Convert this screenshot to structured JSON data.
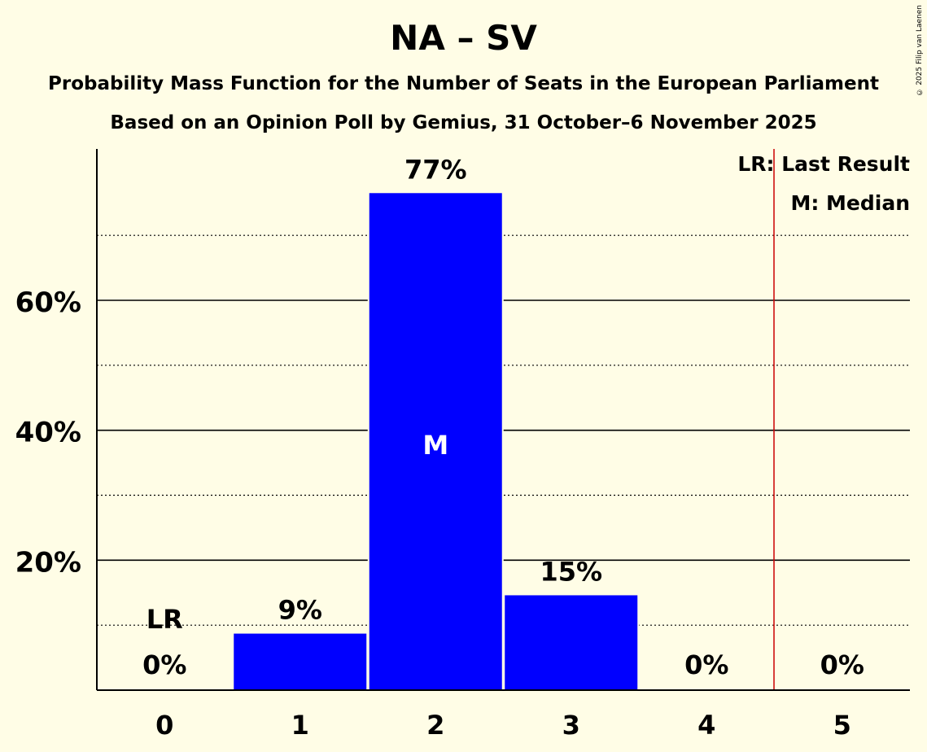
{
  "title": "NA – SV",
  "subtitle1": "Probability Mass Function for the Number of Seats in the European Parliament",
  "subtitle2": "Based on an Opinion Poll by Gemius, 31 October–6 November 2025",
  "copyright": "© 2025 Filip van Laenen",
  "legend": {
    "lr": "LR: Last Result",
    "m": "M: Median"
  },
  "colors": {
    "background": "#FFFDE6",
    "bar": "#0000FF",
    "last_result_line": "#CC0000"
  },
  "chart_data": {
    "type": "bar",
    "title": "NA – SV",
    "xlabel": "",
    "ylabel": "",
    "categories": [
      "0",
      "1",
      "2",
      "3",
      "4",
      "5"
    ],
    "values": [
      0,
      8.7,
      76.5,
      14.6,
      0,
      0
    ],
    "value_labels": [
      "0%",
      "9%",
      "77%",
      "15%",
      "0%",
      "0%"
    ],
    "ylim": [
      0,
      83
    ],
    "yticks_major": [
      20,
      40,
      60
    ],
    "ytick_labels": [
      "20%",
      "40%",
      "60%"
    ],
    "yticks_minor": [
      10,
      30,
      50,
      70
    ],
    "median_index": 2,
    "median_label": "M",
    "last_result_index": 0,
    "last_result_label": "LR",
    "last_result_line_at": 4.5
  }
}
